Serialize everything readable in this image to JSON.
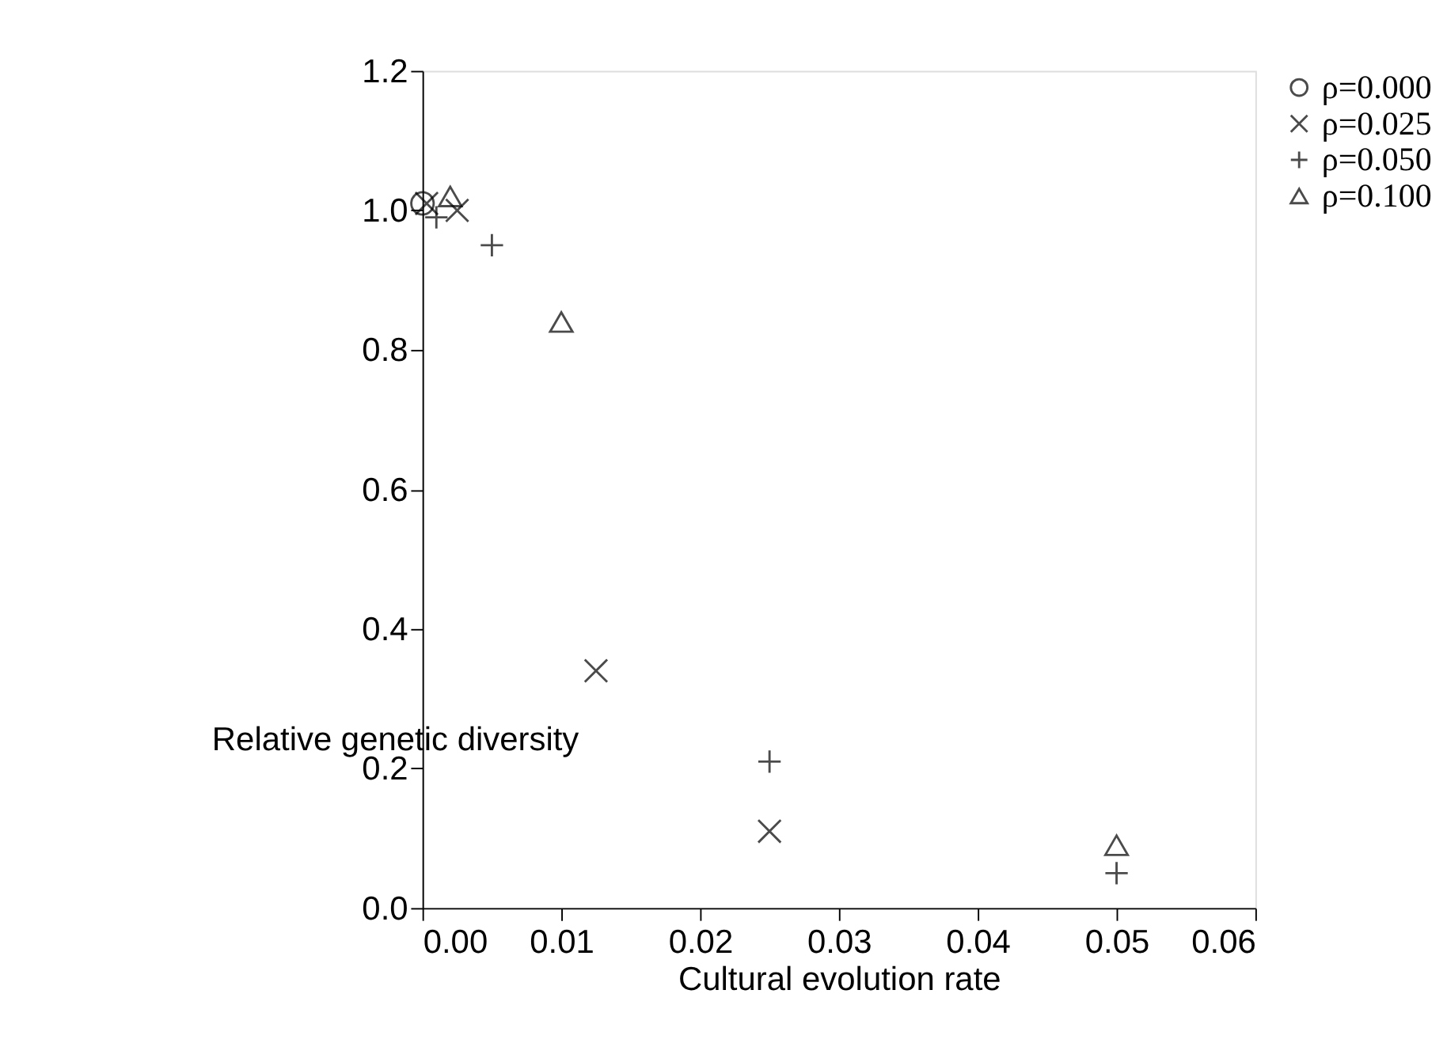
{
  "chart_data": {
    "type": "scatter",
    "xlabel": "Cultural evolution rate",
    "ylabel": "Relative genetic diversity",
    "xlim": [
      0,
      0.06
    ],
    "xticks": [
      {
        "value": 0,
        "label": "0.00"
      },
      {
        "value": 0.01,
        "label": "0.01"
      },
      {
        "value": 0.02,
        "label": "0.02"
      },
      {
        "value": 0.03,
        "label": "0.03"
      },
      {
        "value": 0.04,
        "label": "0.04"
      },
      {
        "value": 0.05,
        "label": "0.05"
      },
      {
        "value": 0.06,
        "label": "0.06"
      }
    ],
    "ylim": [
      0,
      1.2
    ],
    "yticks": [
      {
        "value": 0,
        "label": "0.0"
      },
      {
        "value": 0.2,
        "label": "0.2"
      },
      {
        "value": 0.4,
        "label": "0.4"
      },
      {
        "value": 0.6,
        "label": "0.6"
      },
      {
        "value": 0.8,
        "label": "0.8"
      },
      {
        "value": 1.0,
        "label": "1.0"
      },
      {
        "value": 1.2,
        "label": "1.2"
      }
    ],
    "grid": false,
    "legend": "top right",
    "series": [
      {
        "name": "ρ=0.000",
        "color": "#000000",
        "marker": "circle",
        "x": [
          0.0
        ],
        "values": [
          1.01
        ]
      },
      {
        "name": "ρ=0.025",
        "color": "#000000",
        "marker": "cross",
        "x": [
          0.0003,
          0.0025,
          0.0125,
          0.025
        ],
        "values": [
          1.01,
          1.0,
          0.34,
          0.11
        ]
      },
      {
        "name": "ρ=0.050",
        "color": "#000000",
        "marker": "plus",
        "x": [
          0.001,
          0.005,
          0.025,
          0.05
        ],
        "values": [
          0.99,
          0.95,
          0.21,
          0.05
        ]
      },
      {
        "name": "ρ=0.100",
        "color": "#000000",
        "marker": "triangle",
        "x": [
          0.002,
          0.01,
          0.05
        ],
        "values": [
          1.02,
          0.84,
          0.09
        ]
      }
    ]
  }
}
